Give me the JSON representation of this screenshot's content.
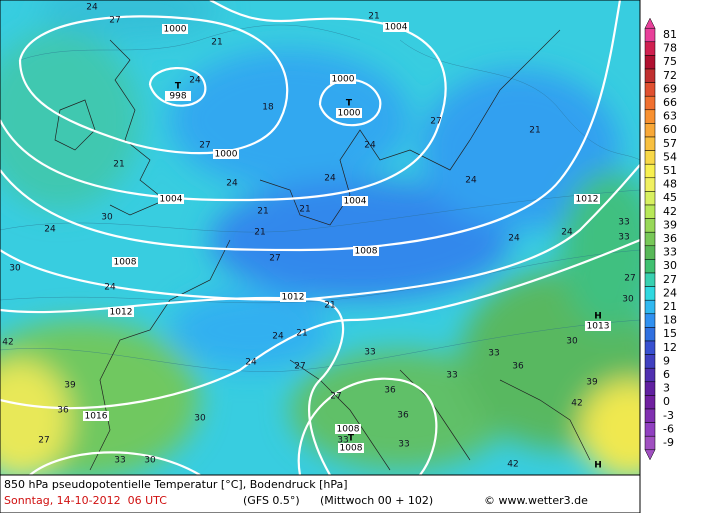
{
  "map": {
    "isobar_labels": [
      "1000",
      "1004",
      "1000",
      "1000",
      "1004",
      "1004",
      "1008",
      "1008",
      "1012",
      "1012",
      "1012",
      "1016",
      "1008"
    ],
    "pressure_centers": [
      {
        "symbol": "T",
        "value": "998"
      },
      {
        "symbol": "T",
        "value": "1000"
      },
      {
        "symbol": "H",
        "value": "1013"
      },
      {
        "symbol": "T",
        "value": "1008"
      },
      {
        "symbol": "H"
      }
    ],
    "contour_labels": [
      "24",
      "27",
      "21",
      "21",
      "24",
      "18",
      "27",
      "21",
      "27",
      "24",
      "21",
      "24",
      "24",
      "21",
      "21",
      "24",
      "30",
      "24",
      "24",
      "27",
      "24",
      "21",
      "24",
      "21",
      "24",
      "27",
      "33",
      "30",
      "33",
      "30",
      "27",
      "30",
      "42",
      "39",
      "36",
      "30",
      "36",
      "36",
      "33",
      "39",
      "42",
      "33",
      "42",
      "30",
      "33",
      "33",
      "21",
      "27",
      "33",
      "36",
      "33",
      "24",
      "27"
    ]
  },
  "colorbar": {
    "levels": [
      81,
      78,
      75,
      72,
      69,
      66,
      63,
      60,
      57,
      54,
      51,
      48,
      45,
      42,
      39,
      36,
      33,
      30,
      27,
      24,
      21,
      18,
      15,
      12,
      9,
      6,
      3,
      0,
      -3,
      -6,
      -9
    ],
    "colors": [
      "#e8409a",
      "#d02050",
      "#b01030",
      "#c03030",
      "#e05030",
      "#f07030",
      "#f89030",
      "#f8a838",
      "#f8c040",
      "#f8d848",
      "#f8f050",
      "#f0f060",
      "#d8f060",
      "#b8e858",
      "#98d858",
      "#78c858",
      "#58b858",
      "#40c070",
      "#38d0b0",
      "#30d8e0",
      "#30b8f0",
      "#3090f0",
      "#3070e0",
      "#3850d0",
      "#4040c0",
      "#5030b0",
      "#6020a0",
      "#7020a0",
      "#8030b0",
      "#9040c0",
      "#a050c0"
    ]
  },
  "footer": {
    "title": "850 hPa pseudopotentielle Temperatur [°C], Bodendruck [hPa]",
    "date": "Sonntag, 14-10-2012  06 UTC",
    "model": "(GFS 0.5°)",
    "run": "(Mittwoch 00 + 102)",
    "source": "© www.wetter3.de"
  }
}
